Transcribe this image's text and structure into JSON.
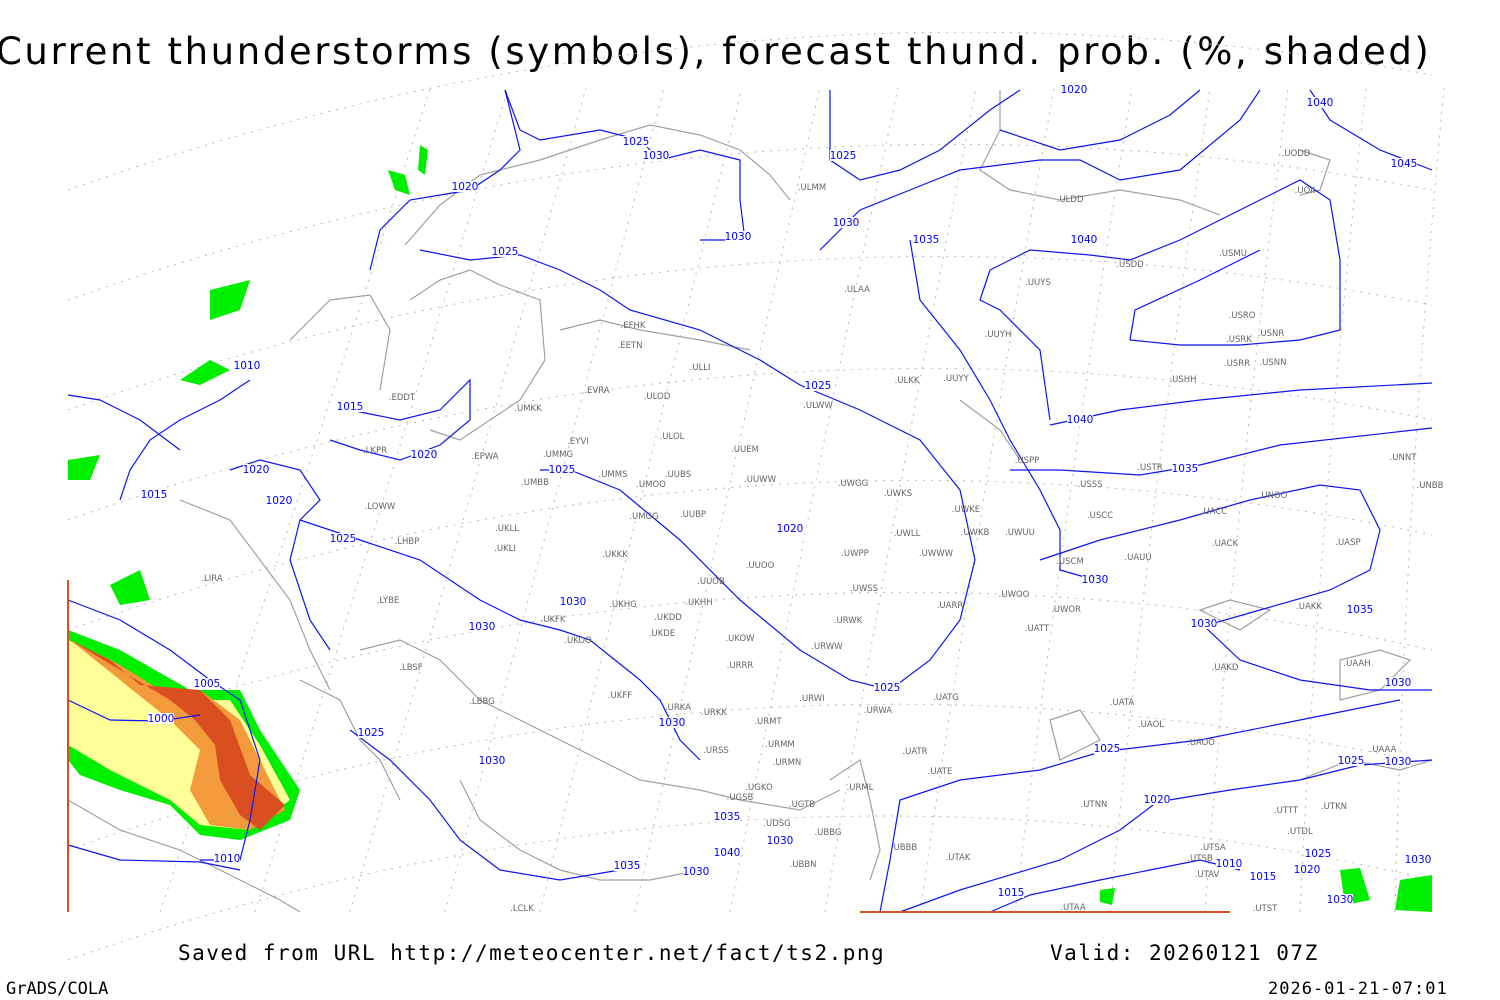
{
  "title": "Current thunderstorms (symbols), forecast thund. prob. (%, shaded)",
  "footer": {
    "saved_from": "Saved from URL http://meteocenter.net/fact/ts2.png",
    "valid": "Valid: 20260121 07Z",
    "software": "GrADS/COLA",
    "generated": "2026-01-21-07:01"
  },
  "colors": {
    "isobar": "#0b16f0",
    "coastline": "#a0a0a0",
    "prob_low": "#00ee00",
    "prob_mid": "#ffff99",
    "prob_high": "#f39a3c",
    "prob_max": "#d94f1f"
  },
  "isobar_labels": [
    "1025",
    "1030",
    "1020",
    "1025",
    "1030",
    "1030",
    "1035",
    "1025",
    "1040",
    "1020",
    "1040",
    "1045",
    "1010",
    "1015",
    "1025",
    "1020",
    "1025",
    "1020",
    "1015",
    "1020",
    "1025",
    "1040",
    "1035",
    "1020",
    "1030",
    "1030",
    "1030",
    "1030",
    "1035",
    "1025",
    "1005",
    "1000",
    "1030",
    "1025",
    "1030",
    "1025",
    "1030",
    "1025",
    "1030",
    "1020",
    "1035",
    "1030",
    "1040",
    "1035",
    "1030",
    "1010",
    "1015",
    "1010",
    "1015",
    "1020",
    "1025",
    "1030",
    "1030"
  ],
  "stations": [
    "ULMM",
    "ULAA",
    "EFHK",
    "EETN",
    "ULLI",
    "EVRA",
    "ULOD",
    "UMKK",
    "EDDT",
    "EYVI",
    "ULOL",
    "UUEM",
    "EPWA",
    "UMMG",
    "LKPR",
    "UMMS",
    "UUBS",
    "UMOO",
    "UMBB",
    "UUWW",
    "UWGG",
    "UWKS",
    "LOWW",
    "UUBP",
    "UMGG",
    "UWKE",
    "UKLL",
    "UWLL",
    "UWKB",
    "UWUU",
    "UKLI",
    "LHBP",
    "UKKK",
    "UWPP",
    "UWWW",
    "UUOO",
    "UUOB",
    "LIRA",
    "LYBE",
    "UWSS",
    "UKHG",
    "UKDD",
    "UKHH",
    "UARR",
    "UKFK",
    "UKDE",
    "UKOO",
    "UKOW",
    "URWK",
    "URWW",
    "LBSF",
    "URRR",
    "UKFF",
    "LBBG",
    "URKA",
    "URKK",
    "URWI",
    "URMT",
    "URWA",
    "UATG",
    "URMM",
    "URSS",
    "URMN",
    "UATT",
    "UWOO",
    "UWOR",
    "UUYS",
    "UUYY",
    "ULKK",
    "ULWW",
    "USPP",
    "UUYH",
    "USSS",
    "USTR",
    "USCC",
    "USCM",
    "UAUU",
    "UACC",
    "UACK",
    "UASP",
    "UNOO",
    "UNNT",
    "UNBB",
    "UAKK",
    "UAAH",
    "UAKD",
    "UATA",
    "UAOL",
    "UAOO",
    "UAAA",
    "UATE",
    "UATR",
    "URML",
    "UGKO",
    "UGSB",
    "UGTB",
    "UDSG",
    "UBBG",
    "UBBN",
    "UBBB",
    "UTAK",
    "UTNN",
    "UTSA",
    "UTSB",
    "UTAV",
    "UTAA",
    "UTST",
    "UTTT",
    "UTKN",
    "UTDL",
    "USHH",
    "USRR",
    "USNN",
    "USRK",
    "USNR",
    "USRO",
    "USMU",
    "USDD",
    "ULDD",
    "UOII",
    "UODD",
    "LCLK"
  ]
}
